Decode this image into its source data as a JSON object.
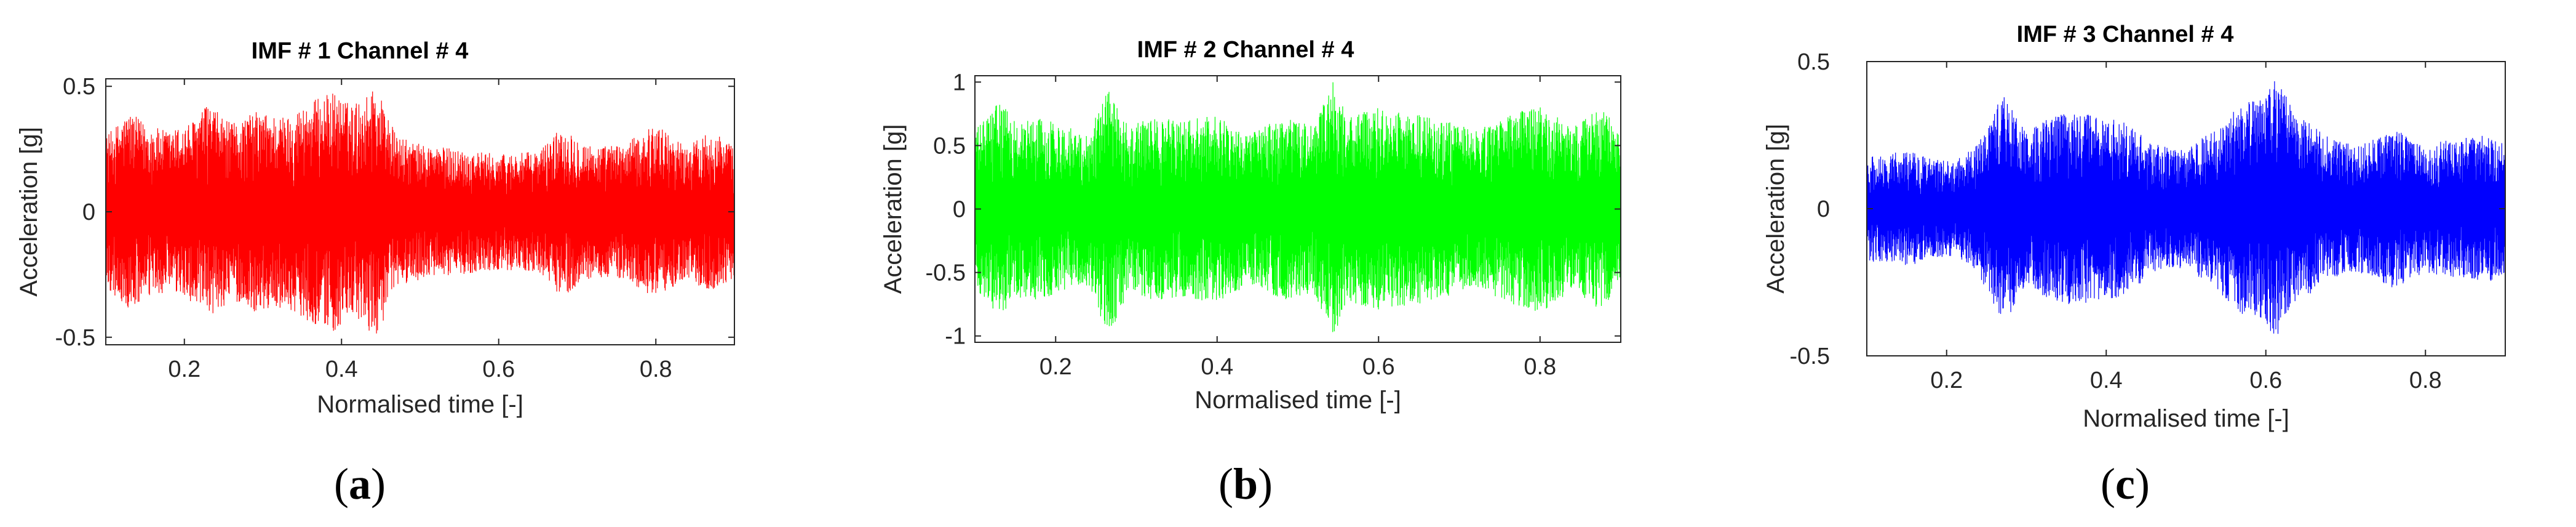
{
  "chart_data": [
    {
      "type": "line",
      "title": "IMF # 1 Channel # 4",
      "xlabel": "Normalised time [-]",
      "ylabel": "Acceleration [g]",
      "xlim": [
        0.1,
        0.9
      ],
      "ylim": [
        -0.53,
        0.53
      ],
      "xticks": [
        0.2,
        0.4,
        0.6,
        0.8
      ],
      "xtick_labels": [
        "0.2",
        "0.4",
        "0.6",
        "0.8"
      ],
      "yticks": [
        -0.5,
        0,
        0.5
      ],
      "ytick_labels": [
        "-0.5",
        "0",
        "0.5"
      ],
      "color": "#ff0000",
      "grid": false,
      "caption": "(a)",
      "caption_letter": "a",
      "envelope": {
        "x": [
          0.1,
          0.13,
          0.15,
          0.18,
          0.21,
          0.23,
          0.26,
          0.29,
          0.33,
          0.36,
          0.39,
          0.41,
          0.43,
          0.44,
          0.45,
          0.47,
          0.5,
          0.55,
          0.6,
          0.65,
          0.68,
          0.72,
          0.76,
          0.8,
          0.84,
          0.87,
          0.9
        ],
        "amp": [
          0.3,
          0.4,
          0.35,
          0.32,
          0.36,
          0.43,
          0.35,
          0.4,
          0.38,
          0.44,
          0.48,
          0.43,
          0.45,
          0.51,
          0.46,
          0.3,
          0.27,
          0.25,
          0.23,
          0.24,
          0.34,
          0.26,
          0.27,
          0.35,
          0.26,
          0.33,
          0.26
        ]
      }
    },
    {
      "type": "line",
      "title": "IMF # 2 Channel # 4",
      "xlabel": "Normalised time [-]",
      "ylabel": "Acceleration [g]",
      "xlim": [
        0.1,
        0.9
      ],
      "ylim": [
        -1.05,
        1.05
      ],
      "xticks": [
        0.2,
        0.4,
        0.6,
        0.8
      ],
      "xtick_labels": [
        "0.2",
        "0.4",
        "0.6",
        "0.8"
      ],
      "yticks": [
        -1,
        -0.5,
        0,
        0.5,
        1
      ],
      "ytick_labels": [
        "-1",
        "-0.5",
        "0",
        "0.5",
        "1"
      ],
      "color": "#00ff00",
      "grid": false,
      "caption": "(b)",
      "caption_letter": "b",
      "envelope": {
        "x": [
          0.1,
          0.13,
          0.15,
          0.18,
          0.21,
          0.24,
          0.26,
          0.27,
          0.29,
          0.32,
          0.36,
          0.4,
          0.44,
          0.48,
          0.52,
          0.545,
          0.56,
          0.6,
          0.64,
          0.68,
          0.72,
          0.76,
          0.8,
          0.84,
          0.88,
          0.9
        ],
        "amp": [
          0.62,
          0.85,
          0.7,
          0.72,
          0.66,
          0.6,
          0.92,
          0.95,
          0.65,
          0.72,
          0.7,
          0.74,
          0.6,
          0.72,
          0.66,
          1.02,
          0.72,
          0.8,
          0.76,
          0.7,
          0.62,
          0.74,
          0.82,
          0.64,
          0.82,
          0.55
        ]
      }
    },
    {
      "type": "line",
      "title": "IMF # 3 Channel # 4",
      "xlabel": "Normalised time [-]",
      "ylabel": "Acceleration [g]",
      "xlim": [
        0.1,
        0.9
      ],
      "ylim": [
        -0.5,
        0.5
      ],
      "xticks": [
        0.2,
        0.4,
        0.6,
        0.8
      ],
      "xtick_labels": [
        "0.2",
        "0.4",
        "0.6",
        "0.8"
      ],
      "yticks": [
        -0.5,
        0,
        0.5
      ],
      "ytick_labels": [
        "-0.5",
        "0",
        "0.5"
      ],
      "color": "#0000ff",
      "grid": false,
      "caption": "(c)",
      "caption_letter": "c",
      "envelope": {
        "x": [
          0.1,
          0.12,
          0.15,
          0.18,
          0.21,
          0.24,
          0.27,
          0.3,
          0.34,
          0.38,
          0.42,
          0.46,
          0.5,
          0.54,
          0.57,
          0.6,
          0.61,
          0.64,
          0.68,
          0.72,
          0.76,
          0.8,
          0.84,
          0.88,
          0.9
        ],
        "amp": [
          0.18,
          0.18,
          0.2,
          0.17,
          0.16,
          0.22,
          0.4,
          0.26,
          0.33,
          0.32,
          0.3,
          0.22,
          0.2,
          0.28,
          0.36,
          0.38,
          0.45,
          0.32,
          0.24,
          0.22,
          0.27,
          0.22,
          0.24,
          0.25,
          0.22
        ]
      }
    }
  ]
}
